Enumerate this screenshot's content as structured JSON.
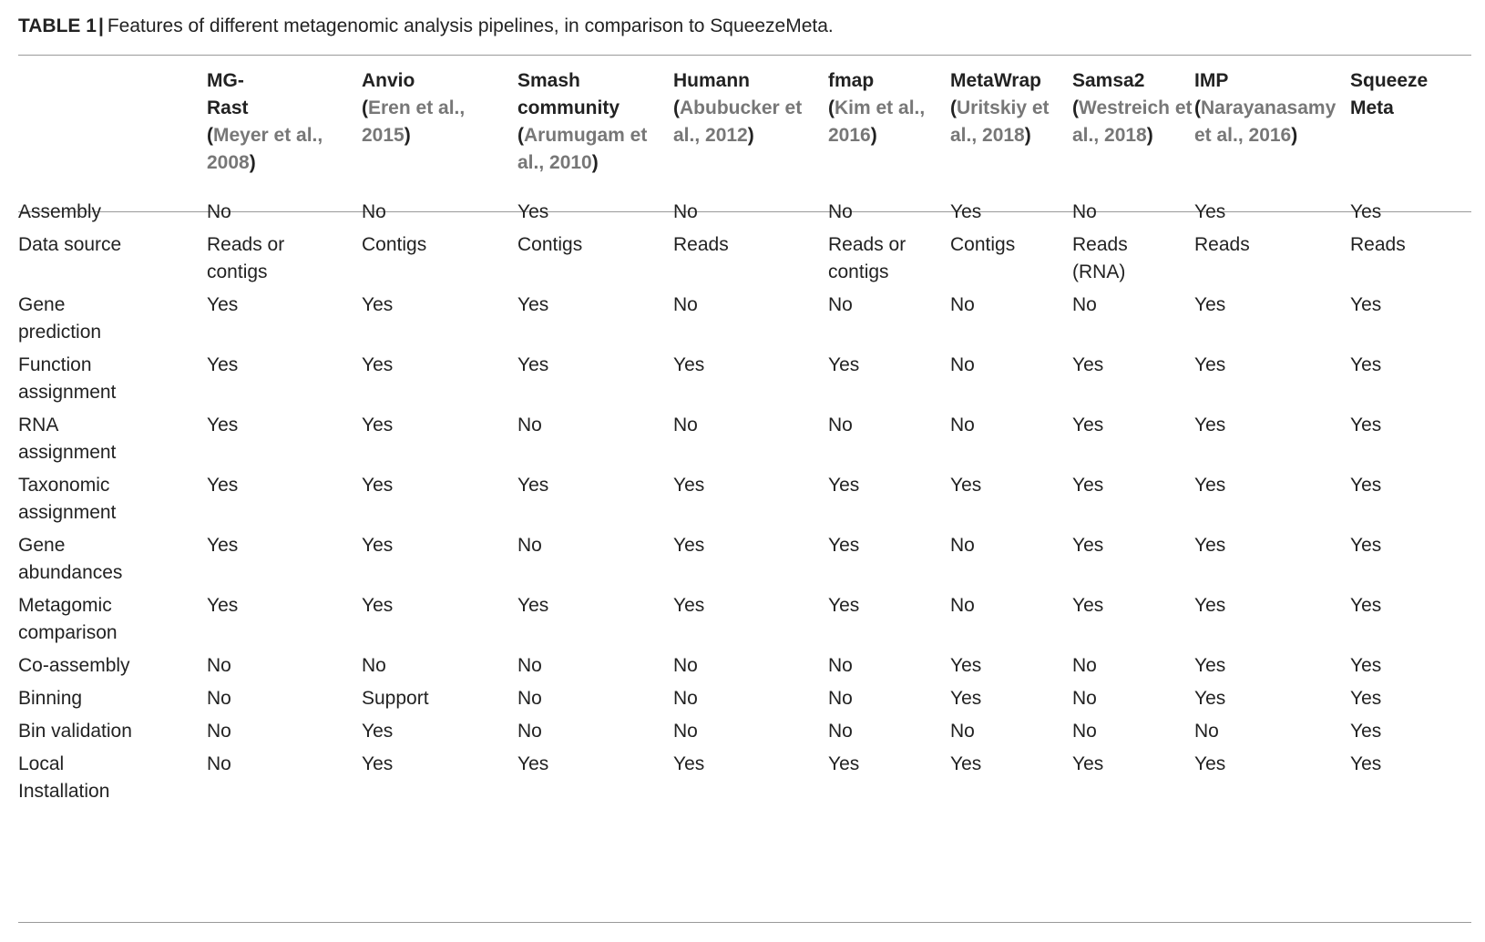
{
  "caption": {
    "label": "TABLE 1",
    "text": "Features of different metagenomic analysis pipelines, in comparison to SqueezeMeta."
  },
  "table": {
    "columns": [
      {
        "line1": "MG-",
        "line2": "Rast",
        "ref": "Meyer et al., 2008"
      },
      {
        "line1": "Anvio",
        "line2": "",
        "ref": "Eren et al., 2015"
      },
      {
        "line1": "Smash",
        "line2": "community",
        "ref": "Arumugam et al., 2010"
      },
      {
        "line1": "Humann",
        "line2": "",
        "ref": "Abubucker et al., 2012"
      },
      {
        "line1": "fmap",
        "line2": "",
        "ref": "Kim et al., 2016"
      },
      {
        "line1": "MetaWrap",
        "line2": "",
        "ref": "Uritskiy et al., 2018"
      },
      {
        "line1": "Samsa2",
        "line2": "",
        "ref": "Westreich et al., 2018"
      },
      {
        "line1": "IMP",
        "line2": "",
        "ref": "Narayanasamy et al., 2016"
      },
      {
        "line1": "Squeeze",
        "line2": "Meta",
        "ref": ""
      }
    ],
    "rows": [
      {
        "feature": "Assembly",
        "values": [
          "No",
          "No",
          "Yes",
          "No",
          "No",
          "Yes",
          "No",
          "Yes",
          "Yes"
        ]
      },
      {
        "feature": "Data source",
        "values": [
          "Reads or contigs",
          "Contigs",
          "Contigs",
          "Reads",
          "Reads or contigs",
          "Contigs",
          "Reads (RNA)",
          "Reads",
          "Reads"
        ]
      },
      {
        "feature": "Gene prediction",
        "values": [
          "Yes",
          "Yes",
          "Yes",
          "No",
          "No",
          "No",
          "No",
          "Yes",
          "Yes"
        ]
      },
      {
        "feature": "Function assignment",
        "values": [
          "Yes",
          "Yes",
          "Yes",
          "Yes",
          "Yes",
          "No",
          "Yes",
          "Yes",
          "Yes"
        ]
      },
      {
        "feature": "RNA assignment",
        "values": [
          "Yes",
          "Yes",
          "No",
          "No",
          "No",
          "No",
          "Yes",
          "Yes",
          "Yes"
        ]
      },
      {
        "feature": "Taxonomic assignment",
        "values": [
          "Yes",
          "Yes",
          "Yes",
          "Yes",
          "Yes",
          "Yes",
          "Yes",
          "Yes",
          "Yes"
        ]
      },
      {
        "feature": "Gene abundances",
        "values": [
          "Yes",
          "Yes",
          "No",
          "Yes",
          "Yes",
          "No",
          "Yes",
          "Yes",
          "Yes"
        ]
      },
      {
        "feature": "Metagomic comparison",
        "values": [
          "Yes",
          "Yes",
          "Yes",
          "Yes",
          "Yes",
          "No",
          "Yes",
          "Yes",
          "Yes"
        ]
      },
      {
        "feature": "Co-assembly",
        "values": [
          "No",
          "No",
          "No",
          "No",
          "No",
          "Yes",
          "No",
          "Yes",
          "Yes"
        ]
      },
      {
        "feature": "Binning",
        "values": [
          "No",
          "Support",
          "No",
          "No",
          "No",
          "Yes",
          "No",
          "Yes",
          "Yes"
        ]
      },
      {
        "feature": "Bin validation",
        "values": [
          "No",
          "Yes",
          "No",
          "No",
          "No",
          "No",
          "No",
          "No",
          "Yes"
        ]
      },
      {
        "feature": "Local Installation",
        "values": [
          "No",
          "Yes",
          "Yes",
          "Yes",
          "Yes",
          "Yes",
          "Yes",
          "Yes",
          "Yes"
        ]
      }
    ]
  }
}
